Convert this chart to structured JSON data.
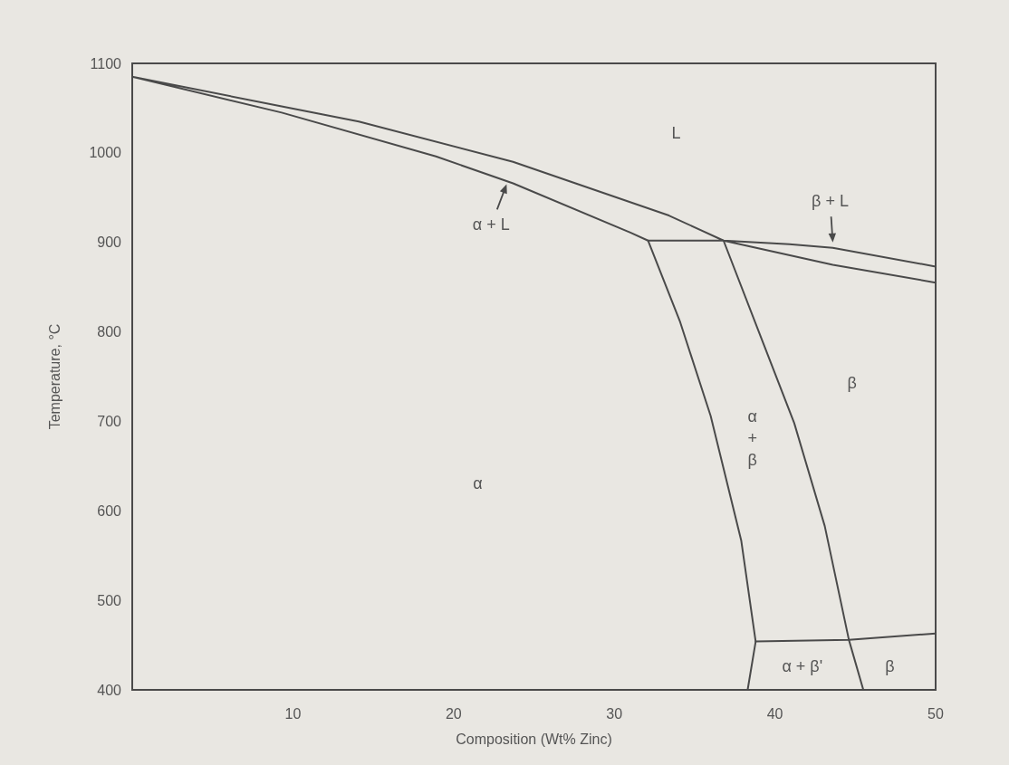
{
  "chart_data": {
    "type": "line",
    "xlabel": "Composition (Wt% Zinc)",
    "ylabel": "Temperature, °C",
    "xlim": [
      0,
      50
    ],
    "ylim": [
      400,
      1100
    ],
    "xticks": [
      10,
      20,
      30,
      40,
      50
    ],
    "yticks": [
      400,
      500,
      600,
      700,
      800,
      900,
      1000,
      1100
    ],
    "marker": "none",
    "line_style": "solid",
    "series": [
      {
        "color": "#4a4a4a",
        "x": [
          50,
          43.6,
          40.9,
          36.8,
          33.4,
          23.7,
          14.1,
          9.3,
          0,
          9.3,
          18.9,
          23.7,
          31.0,
          32.1,
          36.8,
          43.6,
          50
        ],
        "values": [
          873,
          894,
          898,
          902,
          930,
          990,
          1035,
          1052,
          1085,
          1045,
          996,
          966,
          911,
          902,
          902,
          875,
          855
        ]
      },
      {
        "color": "#4a4a4a",
        "x": [
          32.1,
          34.1,
          36.0,
          37.9,
          38.8,
          38.3
        ],
        "values": [
          902,
          811,
          706,
          567,
          454,
          400
        ]
      },
      {
        "color": "#4a4a4a",
        "x": [
          36.8,
          39.3,
          41.2,
          43.1,
          44.6,
          45.5
        ],
        "values": [
          902,
          786,
          698,
          583,
          456,
          400
        ]
      },
      {
        "color": "#4a4a4a",
        "x": [
          38.8,
          44.6,
          50
        ],
        "values": [
          454,
          456,
          463
        ]
      }
    ],
    "annotations": [
      "L",
      {
        "text": "α + L",
        "x": 23.3,
        "y": 965
      },
      {
        "text": "β + L",
        "x": 43.6,
        "y": 900
      },
      "α",
      "α\n+\nβ",
      "β",
      "α + β'",
      "β"
    ]
  }
}
